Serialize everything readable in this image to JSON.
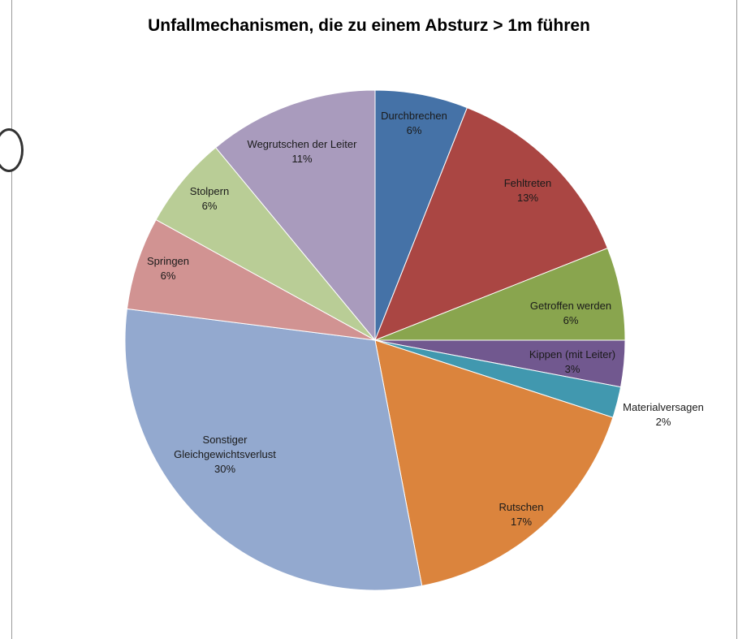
{
  "chart_data": {
    "type": "pie",
    "title": "Unfallmechanismen, die zu einem Absturz > 1m führen",
    "slices": [
      {
        "label": "Durchbrechen",
        "value": 6,
        "percent_label": "6%",
        "color": "#4572A7"
      },
      {
        "label": "Fehltreten",
        "value": 13,
        "percent_label": "13%",
        "color": "#AA4643"
      },
      {
        "label": "Getroffen werden",
        "value": 6,
        "percent_label": "6%",
        "color": "#89A54E"
      },
      {
        "label": "Kippen (mit Leiter)",
        "value": 3,
        "percent_label": "3%",
        "color": "#71588F"
      },
      {
        "label": "Materialversagen",
        "value": 2,
        "percent_label": "2%",
        "color": "#4198AF"
      },
      {
        "label": "Rutschen",
        "value": 17,
        "percent_label": "17%",
        "color": "#DB843D"
      },
      {
        "label": "Sonstiger Gleichgewichtsverlust",
        "value": 30,
        "percent_label": "30%",
        "color": "#93A9CF"
      },
      {
        "label": "Springen",
        "value": 6,
        "percent_label": "6%",
        "color": "#D19392"
      },
      {
        "label": "Stolpern",
        "value": 6,
        "percent_label": "6%",
        "color": "#B9CD96"
      },
      {
        "label": "Wegrutschen der Leiter",
        "value": 11,
        "percent_label": "11%",
        "color": "#A99BBD"
      }
    ]
  }
}
